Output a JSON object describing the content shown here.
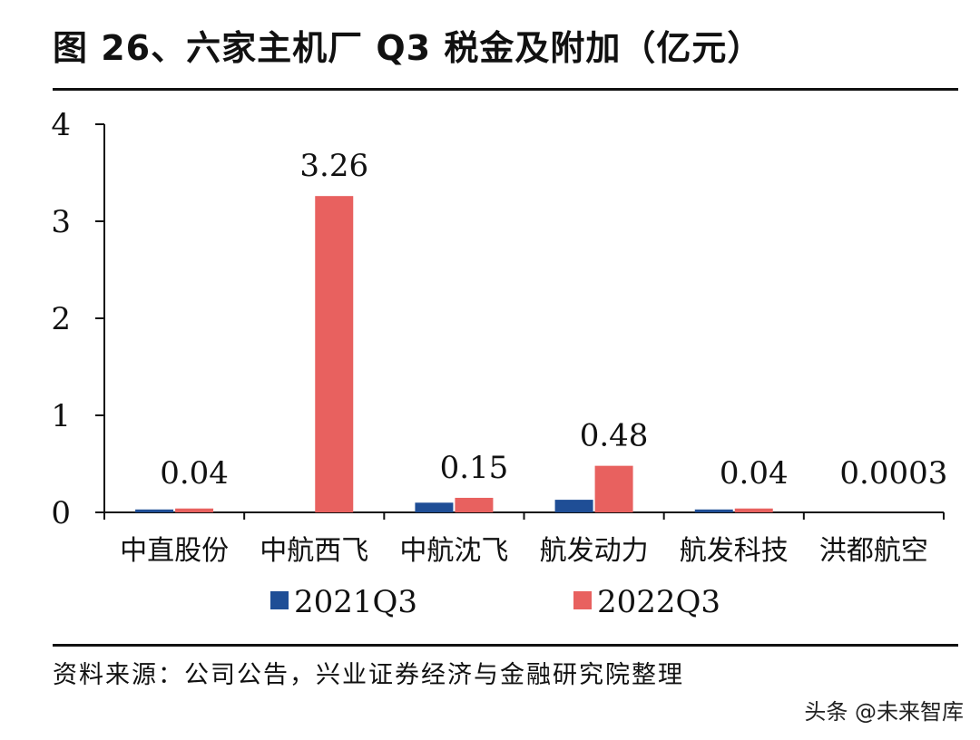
{
  "title": "图 26、六家主机厂 Q3 税金及附加（亿元）",
  "source": "资料来源：公司公告，兴业证券经济与金融研究院整理",
  "watermark": "头条 @未来智库",
  "colors": {
    "series_2021": "#1f4e96",
    "series_2022": "#e8615f",
    "axis": "#111111"
  },
  "chart_data": {
    "type": "bar",
    "categories": [
      "中直股份",
      "中航西飞",
      "中航沈飞",
      "航发动力",
      "航发科技",
      "洪都航空"
    ],
    "series": [
      {
        "name": "2021Q3",
        "values": [
          0.03,
          0,
          0.1,
          0.13,
          0.03,
          0
        ]
      },
      {
        "name": "2022Q3",
        "values": [
          0.04,
          3.26,
          0.15,
          0.48,
          0.04,
          0.0003
        ]
      }
    ],
    "data_labels": [
      "0.04",
      "3.26",
      "0.15",
      "0.48",
      "0.04",
      "0.0003"
    ],
    "ylim": [
      0,
      4
    ],
    "yticks": [
      "0",
      "1",
      "2",
      "3",
      "4"
    ],
    "legend_position": "bottom",
    "grid": false
  }
}
